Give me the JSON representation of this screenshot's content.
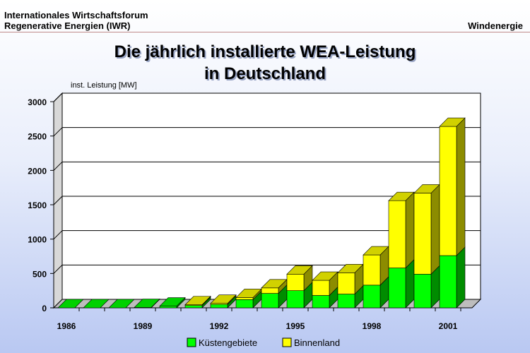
{
  "header": {
    "line1": "Internationales Wirtschaftsforum",
    "line2": "Regenerative Energien (IWR)",
    "right": "Windenergie"
  },
  "chart_data": {
    "type": "bar",
    "stacked": true,
    "title_line1": "Die jährlich installierte WEA-Leistung",
    "title_line2": "in Deutschland",
    "ylabel": "inst. Leistung [MW]",
    "xlabel": "",
    "ylim": [
      0,
      3000
    ],
    "yticks": [
      0,
      500,
      1000,
      1500,
      2000,
      2500,
      3000
    ],
    "grid": true,
    "legend": "bottom",
    "categories": [
      1986,
      1987,
      1988,
      1989,
      1990,
      1991,
      1992,
      1993,
      1994,
      1995,
      1996,
      1997,
      1998,
      1999,
      2000,
      2001
    ],
    "xtick_labels": [
      "1986",
      "",
      "",
      "1989",
      "",
      "",
      "1992",
      "",
      "",
      "1995",
      "",
      "",
      "1998",
      "",
      "",
      "2001"
    ],
    "series": [
      {
        "name": "Küstengebiete",
        "color": "#00ff00",
        "values": [
          0,
          0,
          0,
          5,
          25,
          35,
          50,
          120,
          210,
          250,
          180,
          200,
          330,
          580,
          490,
          760
        ]
      },
      {
        "name": "Binnenland",
        "color": "#ffff00",
        "values": [
          0,
          0,
          0,
          0,
          0,
          10,
          15,
          30,
          80,
          240,
          220,
          310,
          440,
          980,
          1180,
          1880
        ]
      }
    ]
  }
}
